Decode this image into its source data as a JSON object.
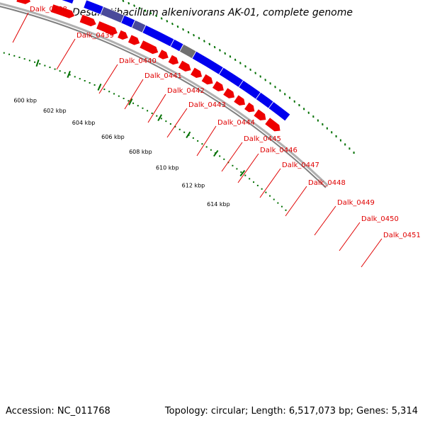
{
  "title": "Desulfatibacillum alkenivorans AK-01, complete genome",
  "footer": {
    "accession": "Accession: NC_011768",
    "summary": "Topology: circular; Length: 6,517,073 bp; Genes: 5,314"
  },
  "colors": {
    "forward_gene": "#0000ee",
    "forward_gene_dark": "#000080",
    "forward_gene_selected": "#4a4a9a",
    "pseudo_gene": "#707070",
    "reverse_gene": "#ee0000",
    "backbone": "#808080",
    "label": "#e00000",
    "tick": "#007000"
  },
  "gene_labels": [
    "Dalk_0438",
    "Dalk_0439",
    "Dalk_0440",
    "Dalk_0441",
    "Dalk_0442",
    "Dalk_0443",
    "Dalk_0444",
    "Dalk_0445",
    "Dalk_0446",
    "Dalk_0447",
    "Dalk_0448",
    "Dalk_0449",
    "Dalk_0450",
    "Dalk_0451"
  ],
  "tick_labels": [
    "600 kbp",
    "602 kbp",
    "604 kbp",
    "606 kbp",
    "608 kbp",
    "610 kbp",
    "612 kbp",
    "614 kbp"
  ]
}
